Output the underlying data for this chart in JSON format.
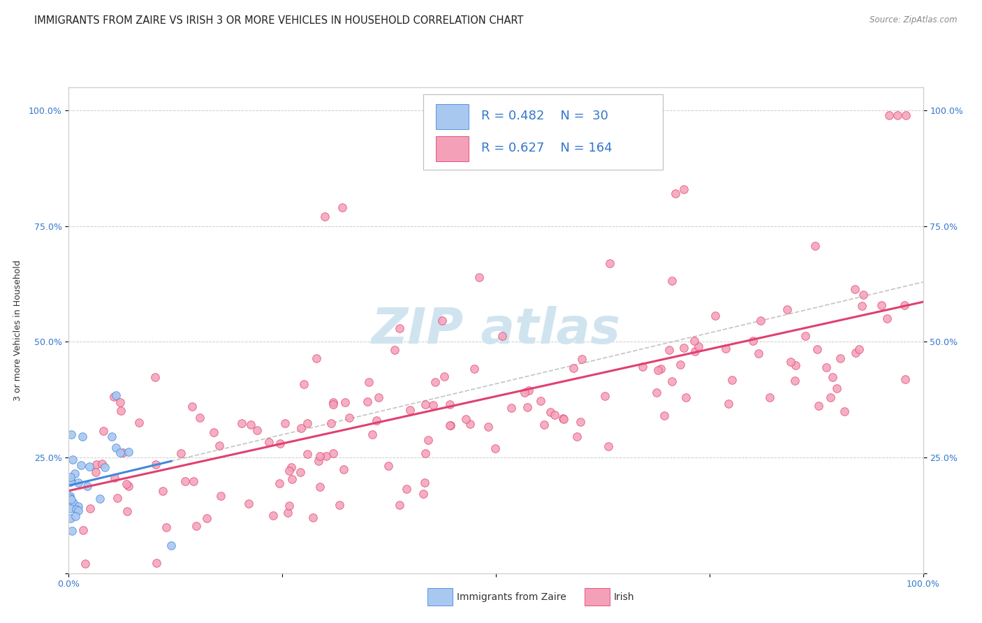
{
  "title": "IMMIGRANTS FROM ZAIRE VS IRISH 3 OR MORE VEHICLES IN HOUSEHOLD CORRELATION CHART",
  "source": "Source: ZipAtlas.com",
  "ylabel": "3 or more Vehicles in Household",
  "legend_blue_r": "R = 0.482",
  "legend_blue_n": "N =  30",
  "legend_pink_r": "R = 0.627",
  "legend_pink_n": "N = 164",
  "legend_label1": "Immigrants from Zaire",
  "legend_label2": "Irish",
  "blue_color": "#a8c8f0",
  "pink_color": "#f4a0b8",
  "blue_line_color": "#4488dd",
  "pink_line_color": "#e04070",
  "dash_line_color": "#aaaaaa",
  "grid_color": "#cccccc",
  "background_color": "#ffffff",
  "watermark_color": "#d0e4f0",
  "title_fontsize": 10.5,
  "axis_tick_fontsize": 9,
  "legend_fontsize": 13,
  "source_fontsize": 8.5,
  "ylabel_fontsize": 9
}
